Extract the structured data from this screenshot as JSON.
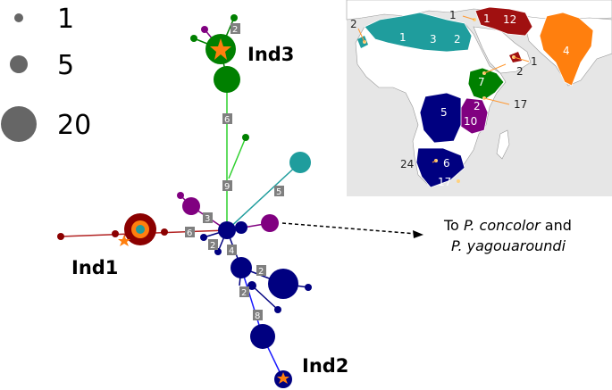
{
  "legend": {
    "title": "",
    "items": [
      {
        "label": "1",
        "size": 1
      },
      {
        "label": "5",
        "size": 5
      },
      {
        "label": "20",
        "size": 20
      }
    ]
  },
  "groups": {
    "ind1": "Ind1",
    "ind2": "Ind2",
    "ind3": "Ind3"
  },
  "colors": {
    "ind1": "#8b0000",
    "ind2": "#000080",
    "ind3": "#008000",
    "teal": "#1f9d9d",
    "purple": "#800080",
    "orange": "#ff7f0e",
    "box": "#7f7f7f"
  },
  "branch_labels": [
    "2",
    "6",
    "9",
    "5",
    "3",
    "6",
    "2",
    "4",
    "2",
    "2",
    "8"
  ],
  "outgroup": {
    "prefix": "To ",
    "species1": "P. concolor",
    "joiner": " and",
    "species2": "P. yagouaroundi"
  },
  "map_counts": {
    "nw_africa": "2",
    "algeria": "1",
    "libya": "3",
    "egypt": "2",
    "levant": "1",
    "iraq_left": "1",
    "iran": "12",
    "oman": "1",
    "yemen": "2",
    "india": "4",
    "ethiopia": "7",
    "kenya": "2",
    "tanzania_edge": "17",
    "congo": "5",
    "tanzania": "10",
    "namibia": "24",
    "south_africa": "6",
    "south_africa_lower": "17"
  }
}
